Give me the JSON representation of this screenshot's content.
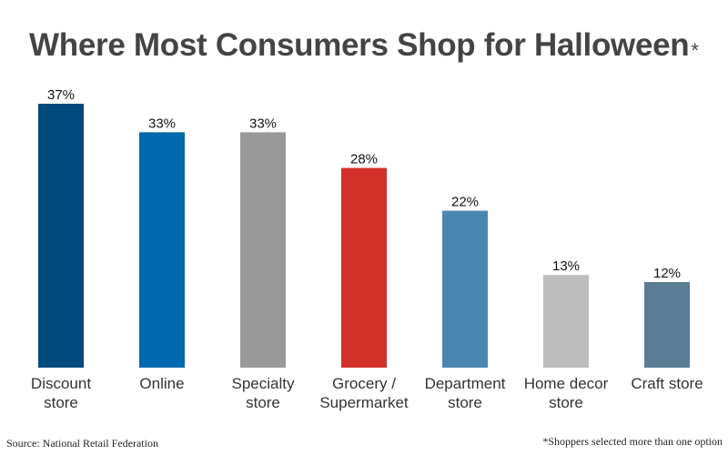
{
  "header": {
    "title": "Where Most Consumers Shop for Halloween",
    "title_asterisk": "*"
  },
  "chart_data": {
    "type": "bar",
    "categories": [
      [
        "Discount",
        "store"
      ],
      [
        "Online"
      ],
      [
        "Specialty",
        "store"
      ],
      [
        "Grocery /",
        "Supermarket"
      ],
      [
        "Department",
        "store"
      ],
      [
        "Home decor",
        "store"
      ],
      [
        "Craft store"
      ]
    ],
    "values": [
      37,
      33,
      33,
      28,
      22,
      13,
      12
    ],
    "value_labels": [
      "37%",
      "33%",
      "33%",
      "28%",
      "22%",
      "13%",
      "12%"
    ],
    "bar_colors": [
      "#004a7c",
      "#0068ac",
      "#999999",
      "#d13129",
      "#4a87b0",
      "#bdbdbd",
      "#5a7c95"
    ],
    "ylim": [
      0,
      37
    ],
    "unit": "%",
    "grid": false,
    "legend": "none"
  },
  "footer": {
    "source": "Source: National Retail Federation",
    "note": "*Shoppers selected more than one option"
  }
}
